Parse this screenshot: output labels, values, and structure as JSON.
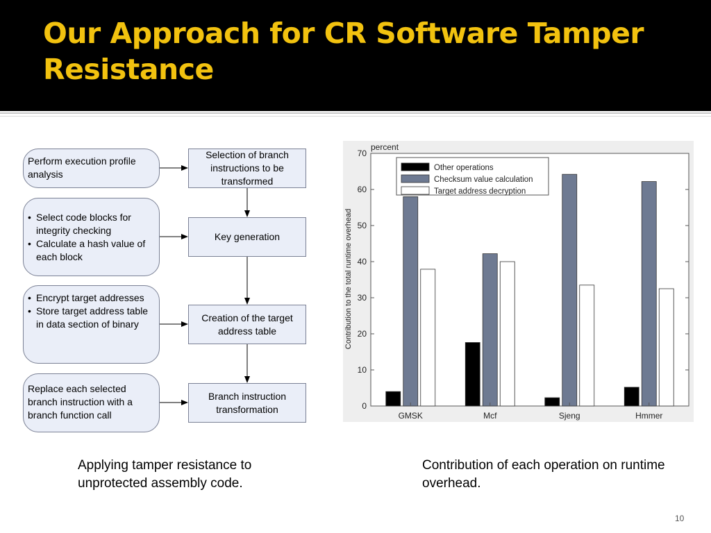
{
  "slide": {
    "title": "Our Approach for CR Software Tamper Resistance",
    "title_color": "#f2c20f",
    "page_number": "10"
  },
  "flowchart": {
    "left_boxes": [
      {
        "text": "Perform execution profile analysis"
      },
      {
        "bullets": [
          "Select code blocks for integrity checking",
          "Calculate a hash value of each block"
        ]
      },
      {
        "bullets": [
          "Encrypt target addresses",
          "Store target address table in data section of binary"
        ]
      },
      {
        "text": "Replace each selected branch instruction with a branch function call"
      }
    ],
    "right_boxes": [
      "Selection of branch instructions to be transformed",
      "Key generation",
      "Creation of the target address table",
      "Branch instruction transformation"
    ],
    "box_fill": "#eaeef8"
  },
  "captions": {
    "left": "Applying tamper resistance to unprotected assembly code.",
    "right": "Contribution of each operation on runtime overhead."
  },
  "chart_data": {
    "type": "bar",
    "title": "",
    "xlabel": "",
    "ylabel": "Contribution to the total runtime overhead",
    "y_unit_label": "percent",
    "categories": [
      "GMSK",
      "Mcf",
      "Sjeng",
      "Hmmer"
    ],
    "ylim": [
      0,
      70
    ],
    "yticks": [
      0,
      10,
      20,
      30,
      40,
      50,
      60,
      70
    ],
    "legend_position": "top",
    "grid": false,
    "series": [
      {
        "name": "Other operations",
        "color": "#000000",
        "values": [
          4,
          17.6,
          2.3,
          5.2
        ]
      },
      {
        "name": "Checksum value calculation",
        "color": "#6e7a92",
        "values": [
          58,
          42.2,
          64.2,
          62.2
        ]
      },
      {
        "name": "Target address decryption",
        "color": "#ffffff",
        "values": [
          37.9,
          40,
          33.5,
          32.5
        ]
      }
    ]
  }
}
